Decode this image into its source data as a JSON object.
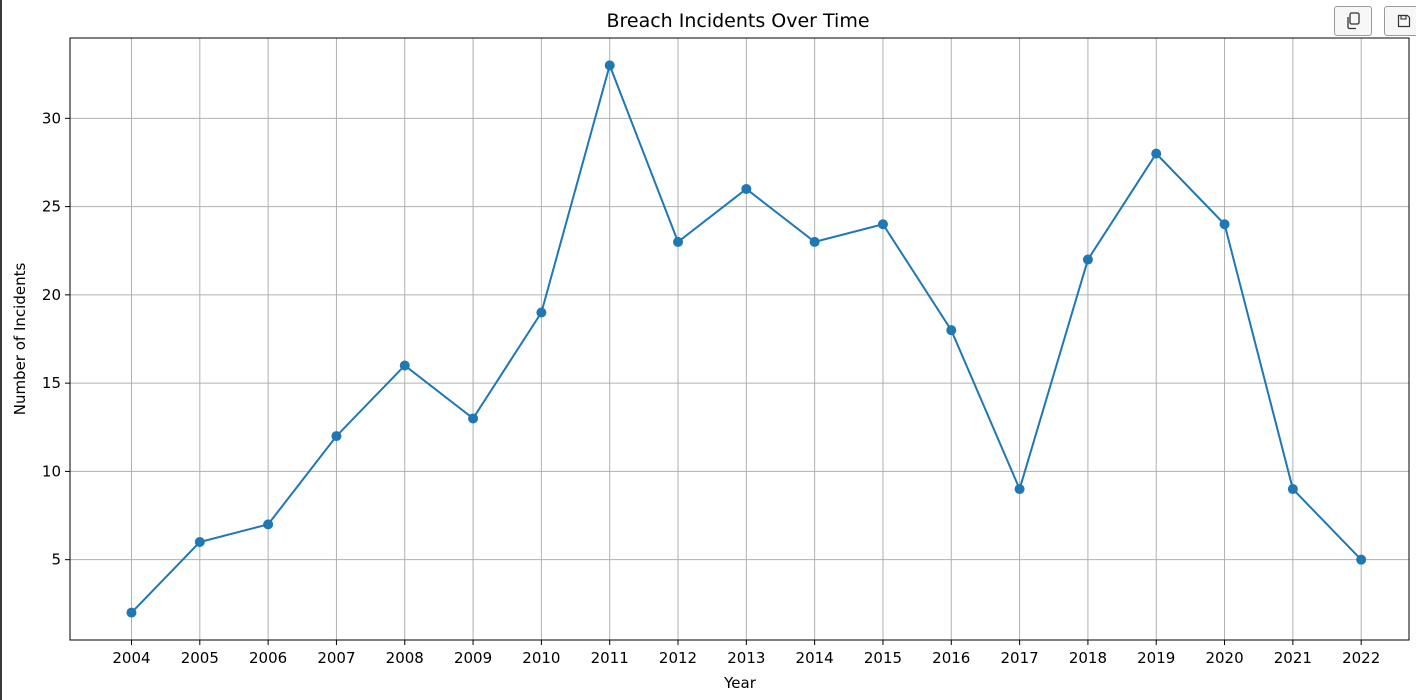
{
  "toolbar": {
    "buttons": [
      {
        "name": "copy",
        "icon": "copy-icon"
      },
      {
        "name": "save",
        "icon": "save-icon"
      }
    ]
  },
  "chart_data": {
    "type": "line",
    "title": "Breach Incidents Over Time",
    "xlabel": "Year",
    "ylabel": "Number of Incidents",
    "x": [
      2004,
      2005,
      2006,
      2007,
      2008,
      2009,
      2010,
      2011,
      2012,
      2013,
      2014,
      2015,
      2016,
      2017,
      2018,
      2019,
      2020,
      2021,
      2022
    ],
    "series": [
      {
        "values": [
          2,
          6,
          7,
          12,
          16,
          13,
          19,
          33,
          23,
          26,
          23,
          24,
          18,
          9,
          22,
          28,
          24,
          9,
          5
        ],
        "color": "#1f77b4",
        "marker": "circle"
      }
    ],
    "xlim": [
      2003.1,
      2022.7
    ],
    "ylim": [
      0.45,
      34.55
    ],
    "yticks": [
      5,
      10,
      15,
      20,
      25,
      30
    ],
    "grid": true
  }
}
